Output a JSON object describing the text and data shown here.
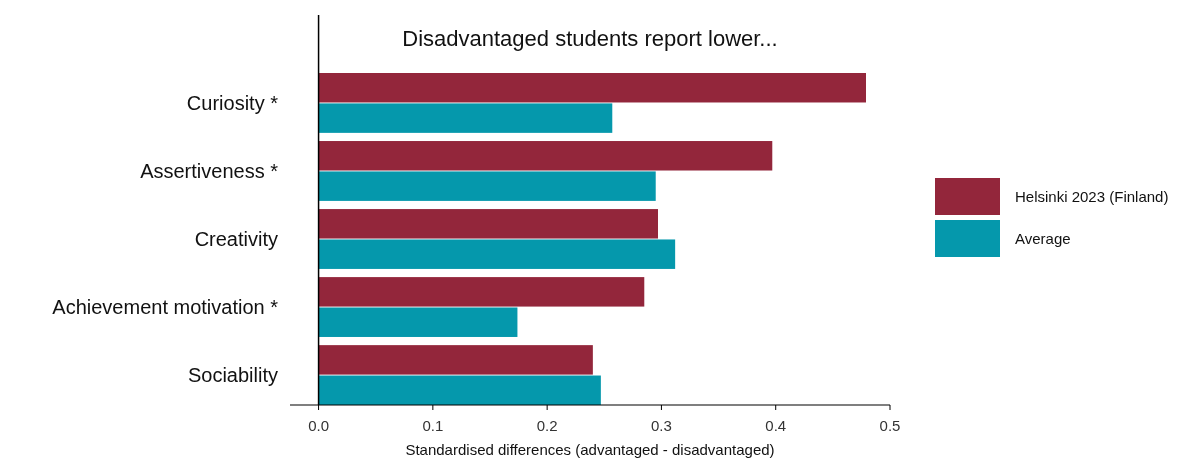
{
  "chart_data": {
    "type": "bar",
    "orientation": "horizontal",
    "title": "Disadvantaged students report lower...",
    "xlabel": "Standardised differences (advantaged - disadvantaged)",
    "categories": [
      "Curiosity *",
      "Assertiveness *",
      "Creativity",
      "Achievement motivation *",
      "Sociability"
    ],
    "series": [
      {
        "name": "Helsinki 2023 (Finland)",
        "color": "#93263b",
        "values": [
          0.479,
          0.397,
          0.297,
          0.285,
          0.24
        ]
      },
      {
        "name": "Average",
        "color": "#0598ac",
        "values": [
          0.257,
          0.295,
          0.312,
          0.174,
          0.247
        ]
      }
    ],
    "xlim": [
      -0.025,
      0.5
    ],
    "xticks": [
      {
        "value": 0,
        "label": "0.0"
      },
      0.1,
      0.2,
      0.3,
      0.4,
      0.5
    ],
    "grid": false,
    "legend": "right"
  }
}
